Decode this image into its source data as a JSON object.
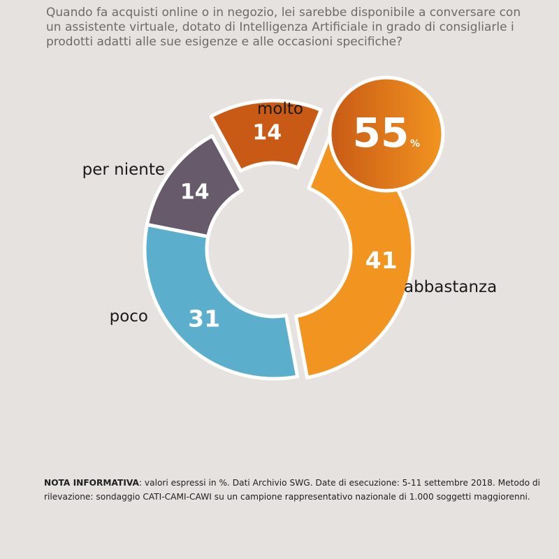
{
  "question": "Quando fa acquisti online o in negozio, lei sarebbe disponibile a conversare con un assistente virtuale, dotato di Intelligenza Artificiale in grado di consigliarle i prodotti adatti alle sue esigenze e alle occasioni specifiche?",
  "highlight": {
    "value": "55",
    "unit": "%",
    "colors": [
      "#c85a15",
      "#f29420"
    ]
  },
  "note": {
    "label": "NOTA INFORMATIVA",
    "text": ": valori espressi in %. Dati Archivio SWG. Date di esecuzione: 5-11 settembre 2018. Metodo di rilevazione: sondaggio CATI-CAMI-CAWI su un campione rappresentativo nazionale di 1.000 soggetti maggiorenni."
  },
  "chart_data": {
    "type": "pie",
    "variant": "donut",
    "unit": "%",
    "categories": [
      "molto",
      "abbastanza",
      "poco",
      "per niente"
    ],
    "values": [
      14,
      41,
      31,
      14
    ],
    "colors": [
      "#c85a15",
      "#f29420",
      "#5bafcc",
      "#675b6b"
    ]
  }
}
